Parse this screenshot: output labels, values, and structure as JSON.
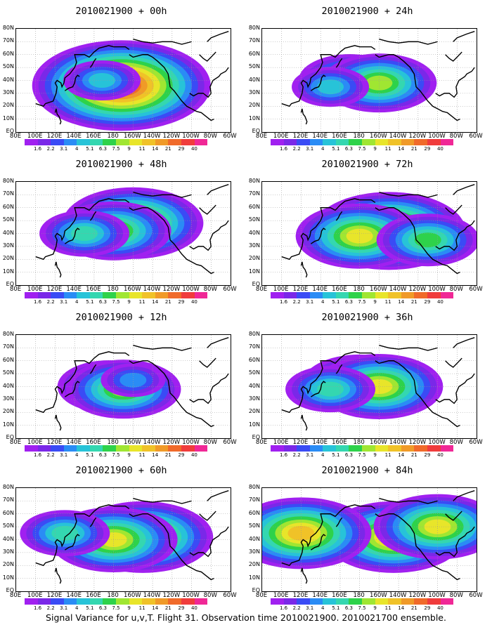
{
  "colorbar": {
    "colors": [
      "#a020f0",
      "#7a28e8",
      "#3a4bf5",
      "#2a8cf5",
      "#27c3d8",
      "#34d7b0",
      "#2ed24a",
      "#a0e632",
      "#e8e52a",
      "#f0c228",
      "#f09a28",
      "#f06a2a",
      "#f03c3c",
      "#f02896"
    ],
    "labels": [
      "1.6",
      "2.2",
      "3.1",
      "4",
      "5.1",
      "6.3",
      "7.5",
      "9",
      "11",
      "14",
      "21",
      "29",
      "40"
    ]
  },
  "axes": {
    "x_labels": [
      "80E",
      "100E",
      "120E",
      "140E",
      "160E",
      "180",
      "160W",
      "140W",
      "120W",
      "100W",
      "80W",
      "60W"
    ],
    "y_labels": [
      "80N",
      "70N",
      "60N",
      "50N",
      "40N",
      "30N",
      "20N",
      "10N",
      "EQ"
    ]
  },
  "caption": "Signal Variance for u,v,T. Flight 31. Observation time 2010021900. 2010021700 ensemble.",
  "chart_data": [
    {
      "type": "heatmap",
      "title": "2010021900 + 00h",
      "blobs": [
        {
          "lon": 180,
          "lat": 40,
          "level": 6
        },
        {
          "lon": 188,
          "lat": 36,
          "level": 12
        },
        {
          "lon": 168,
          "lat": 40,
          "level": 4
        }
      ]
    },
    {
      "type": "heatmap",
      "title": "2010021900 + 12h",
      "blobs": [
        {
          "lon": 175,
          "lat": 40,
          "level": 6
        },
        {
          "lon": 190,
          "lat": 38,
          "level": 7
        },
        {
          "lon": 200,
          "lat": 45,
          "level": 3
        }
      ]
    },
    {
      "type": "heatmap",
      "title": "2010021900 + 24h",
      "blobs": [
        {
          "lon": 170,
          "lat": 40,
          "level": 6
        },
        {
          "lon": 200,
          "lat": 38,
          "level": 7
        },
        {
          "lon": 150,
          "lat": 35,
          "level": 4
        }
      ]
    },
    {
      "type": "heatmap",
      "title": "2010021900 + 36h",
      "blobs": [
        {
          "lon": 180,
          "lat": 42,
          "level": 7
        },
        {
          "lon": 200,
          "lat": 40,
          "level": 8
        },
        {
          "lon": 150,
          "lat": 38,
          "level": 5
        }
      ]
    },
    {
      "type": "heatmap",
      "title": "2010021900 + 48h",
      "blobs": [
        {
          "lon": 200,
          "lat": 48,
          "level": 9
        },
        {
          "lon": 180,
          "lat": 42,
          "level": 7
        },
        {
          "lon": 150,
          "lat": 40,
          "level": 5
        }
      ]
    },
    {
      "type": "heatmap",
      "title": "2010021900 + 60h",
      "blobs": [
        {
          "lon": 210,
          "lat": 42,
          "level": 9
        },
        {
          "lon": 180,
          "lat": 40,
          "level": 8
        },
        {
          "lon": 130,
          "lat": 45,
          "level": 5
        }
      ]
    },
    {
      "type": "heatmap",
      "title": "2010021900 + 72h",
      "blobs": [
        {
          "lon": 210,
          "lat": 42,
          "level": 10
        },
        {
          "lon": 180,
          "lat": 38,
          "level": 8
        },
        {
          "lon": 250,
          "lat": 35,
          "level": 6
        }
      ]
    },
    {
      "type": "heatmap",
      "title": "2010021900 + 84h",
      "blobs": [
        {
          "lon": 215,
          "lat": 42,
          "level": 9
        },
        {
          "lon": 120,
          "lat": 45,
          "level": 9
        },
        {
          "lon": 260,
          "lat": 50,
          "level": 8
        }
      ]
    }
  ]
}
